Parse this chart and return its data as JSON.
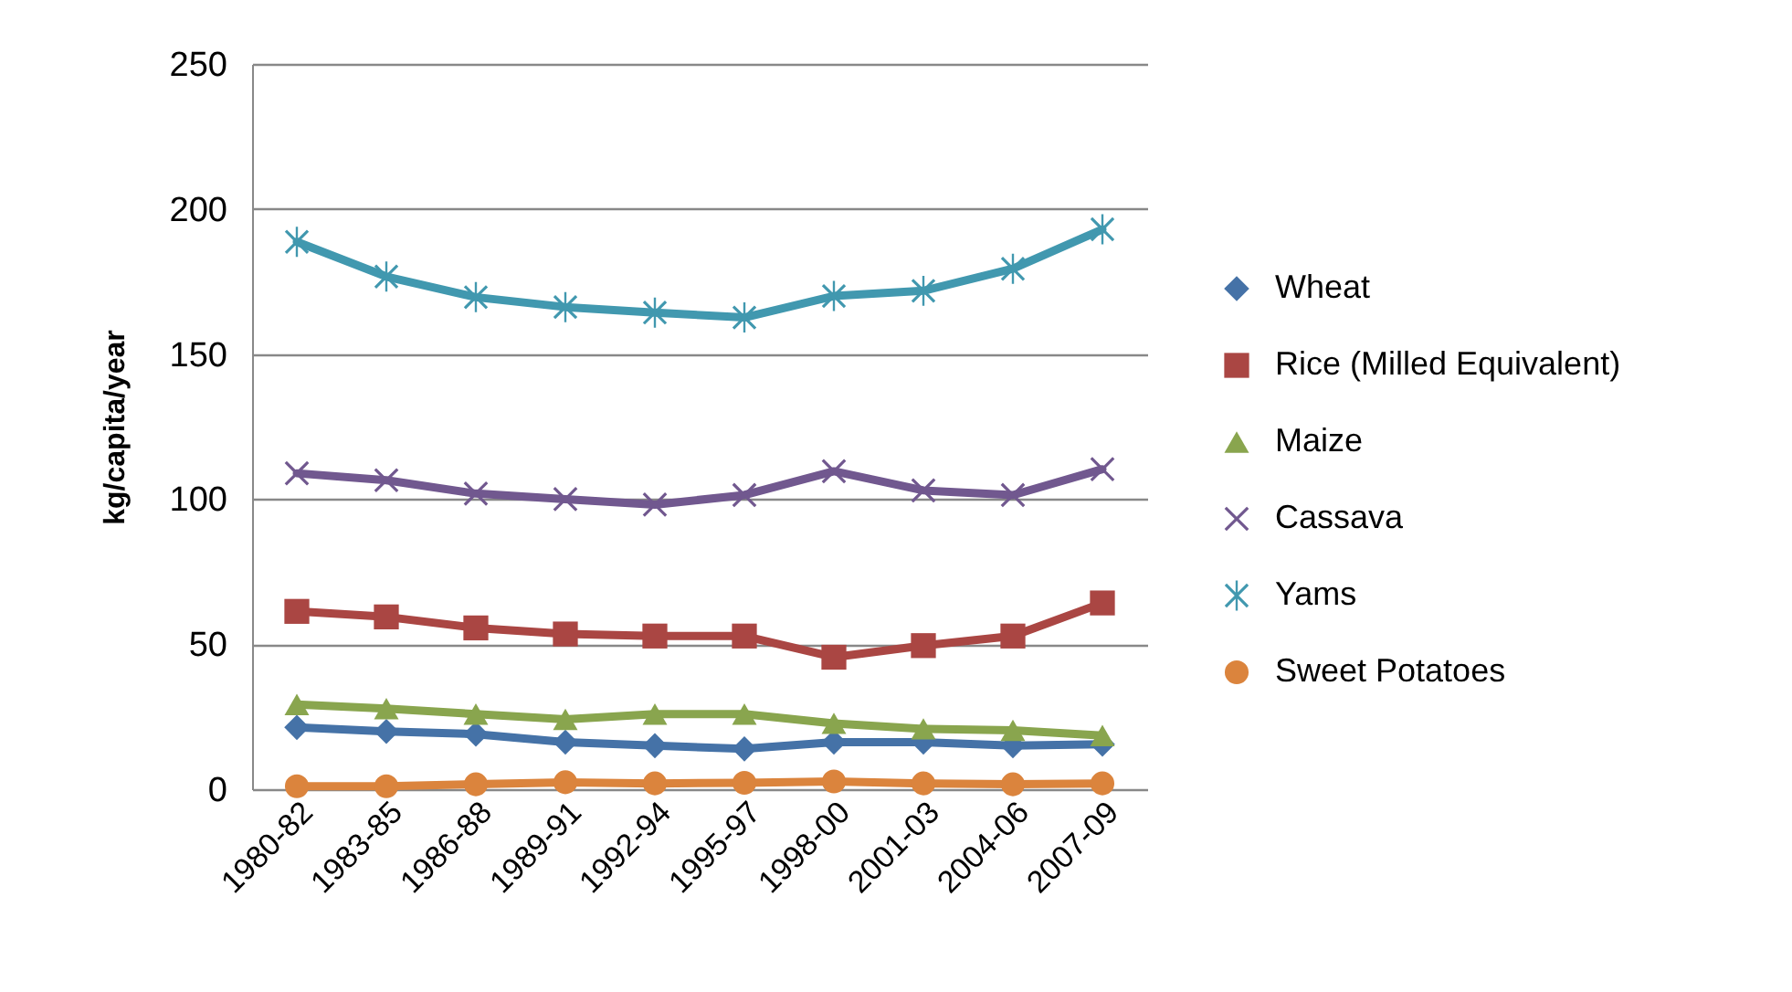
{
  "chart_data": {
    "type": "line",
    "ylabel": "kg/capita/year",
    "categories": [
      "1980-82",
      "1983-85",
      "1986-88",
      "1989-91",
      "1992-94",
      "1995-97",
      "1998-00",
      "2001-03",
      "2004-06",
      "2007-09"
    ],
    "series": [
      {
        "name": "Wheat",
        "color": "#4572a7",
        "marker": "diamond",
        "values": [
          21.3,
          19.9,
          19.0,
          16.2,
          15.0,
          13.9,
          16.2,
          16.2,
          15.0,
          15.5
        ]
      },
      {
        "name": "Rice (Milled Equivalent)",
        "color": "#aa4643",
        "marker": "square",
        "values": [
          61.3,
          59.4,
          55.6,
          53.5,
          52.8,
          52.8,
          45.5,
          49.5,
          52.8,
          64.2
        ]
      },
      {
        "name": "Maize",
        "color": "#89a54e",
        "marker": "triangle",
        "values": [
          29.2,
          27.8,
          25.9,
          24.1,
          25.9,
          25.9,
          22.7,
          20.8,
          20.3,
          18.5
        ]
      },
      {
        "name": "Cassava",
        "color": "#71588f",
        "marker": "cross",
        "values": [
          108.9,
          106.5,
          101.9,
          100.0,
          98.1,
          101.4,
          109.6,
          103.0,
          101.4,
          110.3
        ]
      },
      {
        "name": "Yams",
        "color": "#4198af",
        "marker": "star",
        "values": [
          188.7,
          176.7,
          169.6,
          166.2,
          164.3,
          162.6,
          170.0,
          171.8,
          179.4,
          193.0
        ]
      },
      {
        "name": "Sweet Potatoes",
        "color": "#db843d",
        "marker": "circle",
        "values": [
          1.0,
          1.0,
          1.7,
          2.4,
          2.0,
          2.2,
          2.7,
          2.0,
          1.7,
          2.0
        ]
      }
    ],
    "ylim": [
      0,
      250
    ],
    "yticks": [
      0,
      50,
      100,
      150,
      200,
      250
    ],
    "grid": "y",
    "legend": "right",
    "line_style": "solid"
  }
}
